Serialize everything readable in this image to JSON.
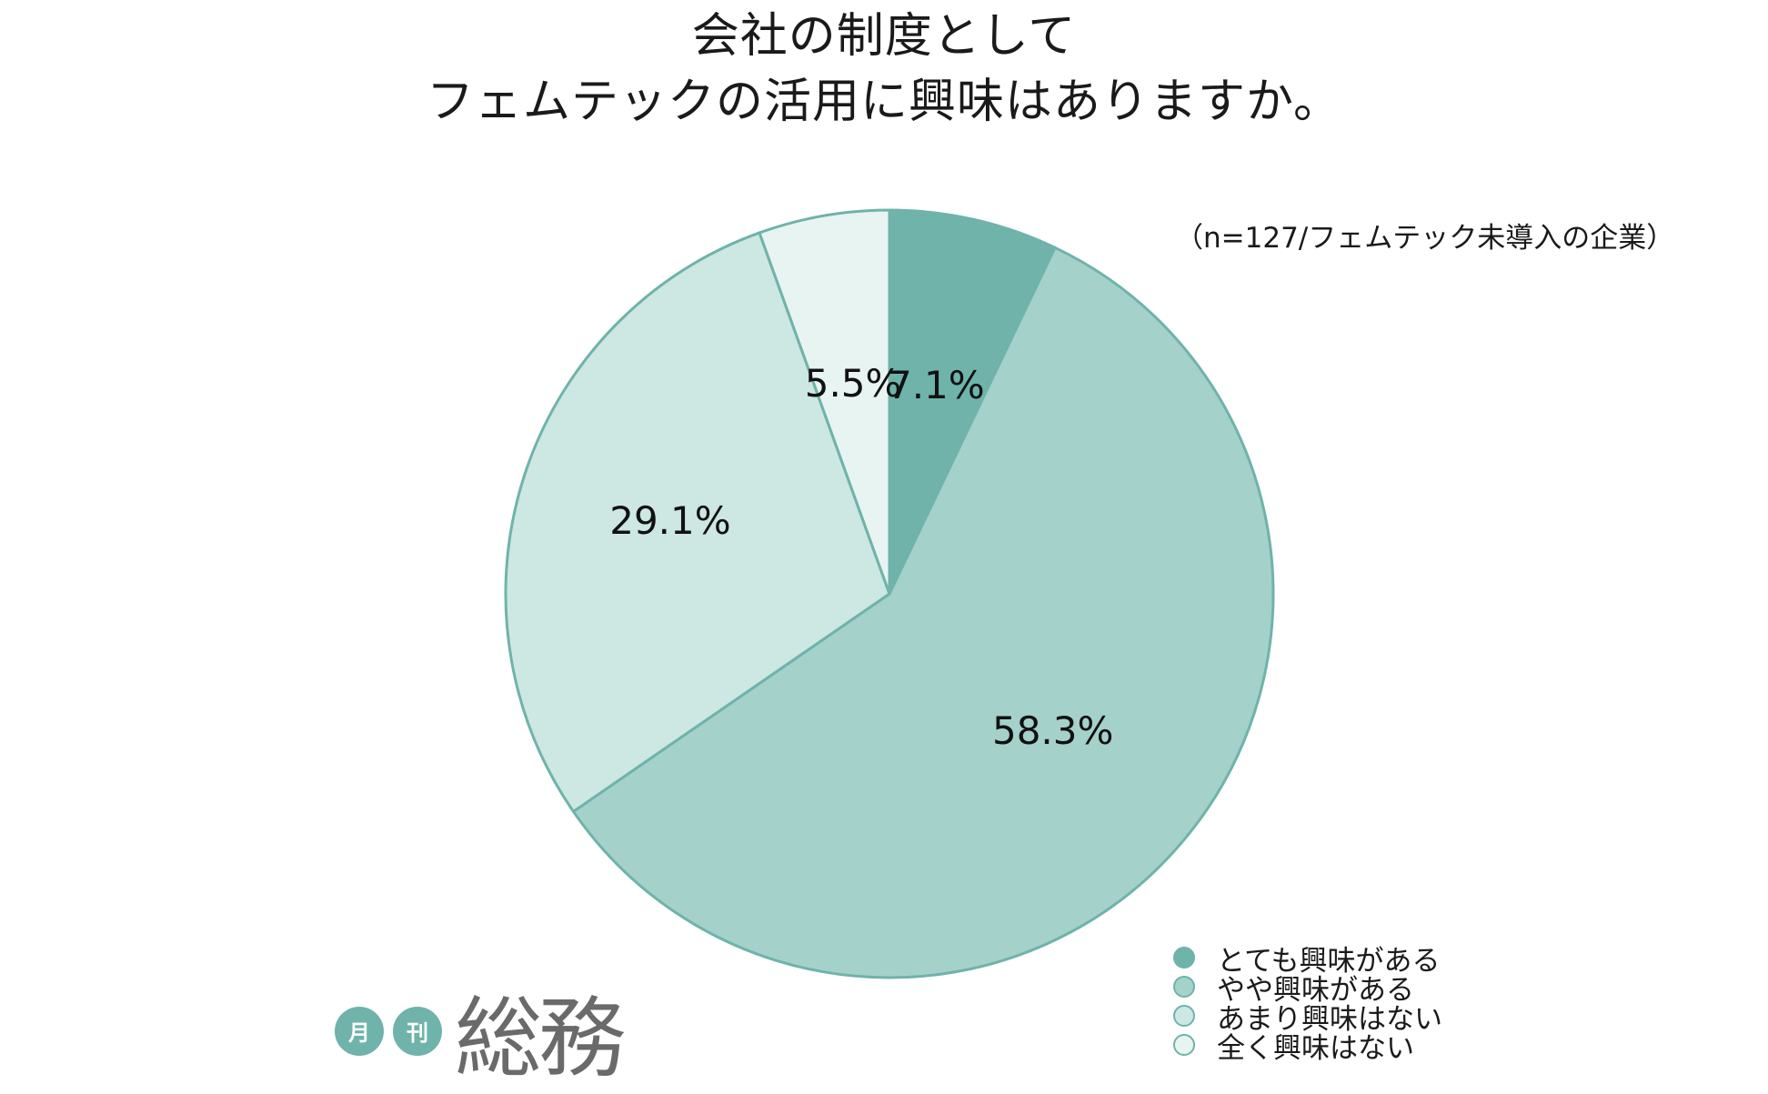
{
  "chart_data": {
    "type": "pie",
    "title_lines": [
      "会社の制度として",
      "フェムテックの活用に興味はありますか。"
    ],
    "note": "（n=127/フェムテック未導入の企業）",
    "start_angle_deg": 0,
    "direction": "clockwise",
    "legend_position": "bottom-right",
    "slices": [
      {
        "label": "とても興味がある",
        "value": 7.1,
        "value_label": "7.1%",
        "color": "#6fb3aa"
      },
      {
        "label": "やや興味がある",
        "value": 58.3,
        "value_label": "58.3%",
        "color": "#a5d1cb"
      },
      {
        "label": "あまり興味はない",
        "value": 29.1,
        "value_label": "29.1%",
        "color": "#cde7e3"
      },
      {
        "label": "全く興味はない",
        "value": 5.5,
        "value_label": "5.5%",
        "color": "#e8f4f2"
      }
    ],
    "edge_color": "#6fb3aa"
  },
  "logo": {
    "badge1": "月",
    "badge2": "刊",
    "word": "総務",
    "color": "#6fb3aa"
  }
}
